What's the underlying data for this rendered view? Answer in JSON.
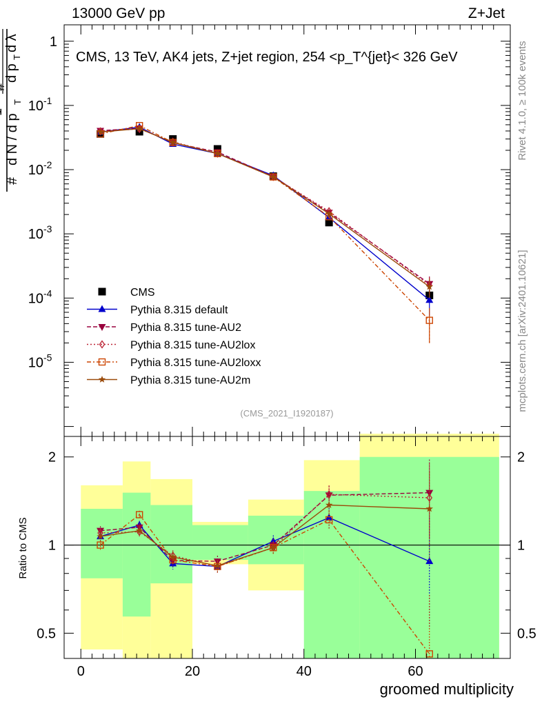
{
  "header": {
    "left": "13000 GeV pp",
    "right": "Z+Jet"
  },
  "side_text": {
    "rivet": "Rivet 4.1.0, ≥ 100k events",
    "mcplots": "mcplots.cern.ch [arXiv:2401.10621]"
  },
  "chart_data": [
    {
      "type": "line",
      "title": "CMS, 13 TeV, AK4 jets, Z+jet region, 254 <p_T^{jet}< 326 GeV",
      "analysis_label": "(CMS_2021_I1920187)",
      "ylabel": "1/(dN/dpT) d²N/(dpT dλ)",
      "yscale": "log",
      "ylim": [
        7e-07,
        1.8
      ],
      "xlim": [
        -3,
        77
      ],
      "y_ticks": [
        "1",
        "10^-1",
        "10^-2",
        "10^-3",
        "10^-4",
        "10^-5"
      ],
      "bin_edges": [
        0,
        7.5,
        12.5,
        20,
        30,
        40,
        50,
        75
      ],
      "x": [
        3.5,
        10.5,
        16.5,
        24.5,
        34.5,
        44.5,
        62.5
      ],
      "series": [
        {
          "name": "CMS",
          "color": "#000000",
          "marker": "square",
          "values": [
            0.036,
            0.039,
            0.03,
            0.021,
            0.0079,
            0.0015,
            0.00011
          ],
          "err": [
            0.0012,
            0.0012,
            0.001,
            0.0008,
            0.0003,
            8e-05,
            2e-05
          ]
        },
        {
          "name": "Pythia 8.315 default",
          "color": "#0000cc",
          "dash": "",
          "marker": "tri-up",
          "values": [
            0.0385,
            0.046,
            0.025,
            0.0178,
            0.0081,
            0.0018,
            9.3e-05
          ],
          "err": [
            0,
            0,
            0,
            0,
            0,
            0.00012,
            4e-05
          ]
        },
        {
          "name": "Pythia 8.315 tune-AU2",
          "color": "#99003d",
          "dash": "6,3",
          "marker": "tri-down",
          "values": [
            0.0405,
            0.044,
            0.0262,
            0.0188,
            0.0078,
            0.00215,
            0.000167
          ],
          "err": [
            0,
            0,
            0,
            0,
            0,
            0.00015,
            5e-05
          ]
        },
        {
          "name": "Pythia 8.315 tune-AU2lox",
          "color": "#bb2233",
          "dash": "2,3",
          "marker": "diamond",
          "values": [
            0.0395,
            0.043,
            0.0272,
            0.0178,
            0.0077,
            0.00225,
            0.000158
          ],
          "err": [
            0,
            0,
            0,
            0,
            0,
            0.00015,
            5e-05
          ]
        },
        {
          "name": "Pythia 8.315 tune-AU2loxx",
          "color": "#cc4400",
          "dash": "6,3,2,3",
          "marker": "square-open",
          "values": [
            0.036,
            0.0485,
            0.0265,
            0.0178,
            0.0077,
            0.00185,
            4.5e-05
          ],
          "err": [
            0,
            0,
            0,
            0,
            0,
            0.00013,
            2.5e-05
          ]
        },
        {
          "name": "Pythia 8.315 tune-AU2m",
          "color": "#9a4a0a",
          "dash": "",
          "marker": "star",
          "values": [
            0.0385,
            0.0435,
            0.0265,
            0.0178,
            0.0077,
            0.00205,
            0.00015
          ],
          "err": [
            0,
            0,
            0,
            0,
            0,
            0.00014,
            5e-05
          ]
        }
      ]
    },
    {
      "type": "line",
      "title": "Ratio to CMS",
      "ylabel": "Ratio to CMS",
      "xlabel": "groomed multiplicity",
      "yscale": "log",
      "ylim": [
        0.41,
        2.35
      ],
      "xlim": [
        -3,
        77
      ],
      "y_ticks": [
        "0.5",
        "1",
        "2"
      ],
      "x_ticks": [
        "0",
        "20",
        "40",
        "60"
      ],
      "bin_edges": [
        0,
        7.5,
        12.5,
        20,
        30,
        40,
        50,
        75
      ],
      "band_yellow": {
        "lo": [
          0.44,
          0.4,
          0.4,
          0.86,
          0.7,
          0.55,
          0.4
        ],
        "hi": [
          1.6,
          1.93,
          1.68,
          1.2,
          1.43,
          1.95,
          2.4
        ]
      },
      "band_green": {
        "lo": [
          0.77,
          0.57,
          0.74,
          0.89,
          0.86,
          0.4,
          0.4
        ],
        "hi": [
          1.33,
          1.51,
          1.37,
          1.17,
          1.26,
          1.53,
          2.0
        ]
      },
      "x": [
        3.5,
        10.5,
        16.5,
        24.5,
        34.5,
        44.5,
        62.5
      ],
      "series": [
        {
          "name": "Pythia 8.315 default",
          "color": "#0000cc",
          "dash": "",
          "marker": "tri-up",
          "values": [
            1.07,
            1.17,
            0.865,
            0.845,
            1.03,
            1.24,
            0.88
          ],
          "err": [
            0.04,
            0.04,
            0.04,
            0.04,
            0.05,
            0.1,
            0.36
          ]
        },
        {
          "name": "Pythia 8.315 tune-AU2",
          "color": "#99003d",
          "dash": "6,3",
          "marker": "tri-down",
          "values": [
            1.12,
            1.15,
            0.885,
            0.88,
            1.0,
            1.48,
            1.51
          ],
          "err": [
            0.04,
            0.04,
            0.04,
            0.04,
            0.05,
            0.11,
            0.45
          ]
        },
        {
          "name": "Pythia 8.315 tune-AU2lox",
          "color": "#bb2233",
          "dash": "2,3",
          "marker": "diamond",
          "values": [
            1.1,
            1.11,
            0.92,
            0.845,
            0.98,
            1.49,
            1.45
          ],
          "err": [
            0.04,
            0.04,
            0.04,
            0.04,
            0.05,
            0.11,
            0.45
          ]
        },
        {
          "name": "Pythia 8.315 tune-AU2loxx",
          "color": "#cc4400",
          "dash": "6,3,2,3",
          "marker": "square-open",
          "values": [
            1.0,
            1.27,
            0.89,
            0.845,
            0.98,
            1.22,
            0.425
          ],
          "err": [
            0.04,
            0.04,
            0.04,
            0.04,
            0.05,
            0.09,
            0.25
          ]
        },
        {
          "name": "Pythia 8.315 tune-AU2m",
          "color": "#9a4a0a",
          "dash": "",
          "marker": "star",
          "values": [
            1.07,
            1.12,
            0.91,
            0.85,
            0.98,
            1.37,
            1.33
          ],
          "err": [
            0.04,
            0.04,
            0.04,
            0.04,
            0.05,
            0.1,
            0.45
          ]
        }
      ]
    }
  ]
}
